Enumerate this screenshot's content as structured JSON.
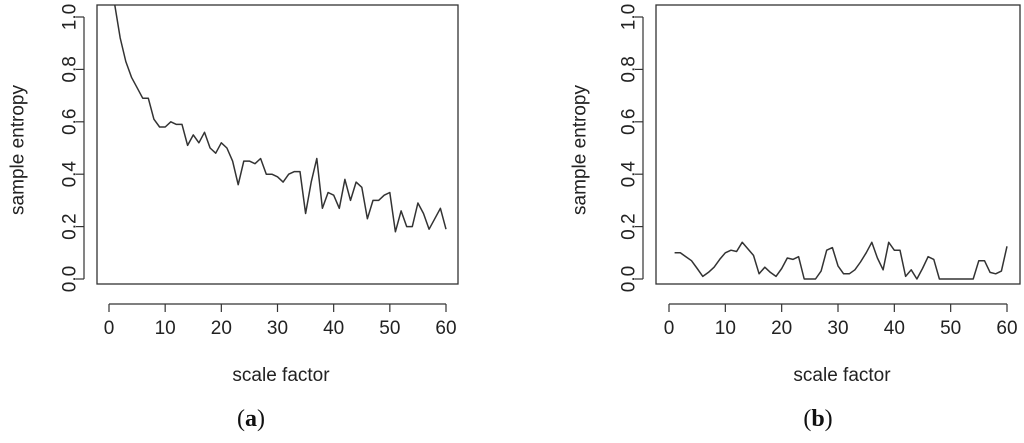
{
  "chart_data": [
    {
      "type": "line",
      "panel_label": "a",
      "xlabel": "scale factor",
      "ylabel": "sample entropy",
      "xlim": [
        0,
        60
      ],
      "ylim": [
        0,
        1.0
      ],
      "xticks": [
        "0",
        "10",
        "20",
        "30",
        "40",
        "50",
        "60"
      ],
      "yticks": [
        "0.0",
        "0.2",
        "0.4",
        "0.6",
        "0.8",
        "1.0"
      ],
      "grid": false,
      "series": [
        {
          "x": [
            1,
            2,
            3,
            4,
            5,
            6,
            7,
            8,
            9,
            10,
            11,
            12,
            13,
            14,
            15,
            16,
            17,
            18,
            19,
            20,
            21,
            22,
            23,
            24,
            25,
            26,
            27,
            28,
            29,
            30,
            31,
            32,
            33,
            34,
            35,
            36,
            37,
            38,
            39,
            40,
            41,
            42,
            43,
            44,
            45,
            46,
            47,
            48,
            49,
            50,
            51,
            52,
            53,
            54,
            55,
            56,
            57,
            58,
            59,
            60
          ],
          "values": [
            1.05,
            0.92,
            0.83,
            0.77,
            0.73,
            0.69,
            0.69,
            0.61,
            0.58,
            0.58,
            0.6,
            0.59,
            0.59,
            0.51,
            0.55,
            0.52,
            0.56,
            0.5,
            0.48,
            0.52,
            0.5,
            0.45,
            0.36,
            0.45,
            0.45,
            0.44,
            0.46,
            0.4,
            0.4,
            0.39,
            0.37,
            0.4,
            0.41,
            0.41,
            0.25,
            0.37,
            0.46,
            0.27,
            0.33,
            0.32,
            0.27,
            0.38,
            0.3,
            0.37,
            0.35,
            0.23,
            0.3,
            0.3,
            0.32,
            0.33,
            0.18,
            0.26,
            0.2,
            0.2,
            0.29,
            0.25,
            0.19,
            0.23,
            0.27,
            0.19
          ]
        }
      ]
    },
    {
      "type": "line",
      "panel_label": "b",
      "xlabel": "scale factor",
      "ylabel": "sample entropy",
      "xlim": [
        0,
        60
      ],
      "ylim": [
        0,
        1.0
      ],
      "xticks": [
        "0",
        "10",
        "20",
        "30",
        "40",
        "50",
        "60"
      ],
      "yticks": [
        "0.0",
        "0.2",
        "0.4",
        "0.6",
        "0.8",
        "1.0"
      ],
      "grid": false,
      "series": [
        {
          "x": [
            1,
            2,
            3,
            4,
            5,
            6,
            7,
            8,
            9,
            10,
            11,
            12,
            13,
            14,
            15,
            16,
            17,
            18,
            19,
            20,
            21,
            22,
            23,
            24,
            25,
            26,
            27,
            28,
            29,
            30,
            31,
            32,
            33,
            34,
            35,
            36,
            37,
            38,
            39,
            40,
            41,
            42,
            43,
            44,
            45,
            46,
            47,
            48,
            49,
            50,
            51,
            52,
            53,
            54,
            55,
            56,
            57,
            58,
            59,
            60
          ],
          "values": [
            0.1,
            0.1,
            0.085,
            0.07,
            0.04,
            0.01,
            0.025,
            0.045,
            0.075,
            0.1,
            0.11,
            0.105,
            0.14,
            0.115,
            0.09,
            0.02,
            0.045,
            0.025,
            0.01,
            0.04,
            0.08,
            0.075,
            0.085,
            0.0,
            0.0,
            0.0,
            0.03,
            0.11,
            0.12,
            0.05,
            0.02,
            0.02,
            0.035,
            0.065,
            0.1,
            0.14,
            0.08,
            0.035,
            0.14,
            0.11,
            0.11,
            0.01,
            0.035,
            0.0,
            0.04,
            0.085,
            0.075,
            0.0,
            0.0,
            0.0,
            0.0,
            0.0,
            0.0,
            0.0,
            0.07,
            0.07,
            0.025,
            0.02,
            0.03,
            0.125
          ]
        }
      ]
    }
  ]
}
